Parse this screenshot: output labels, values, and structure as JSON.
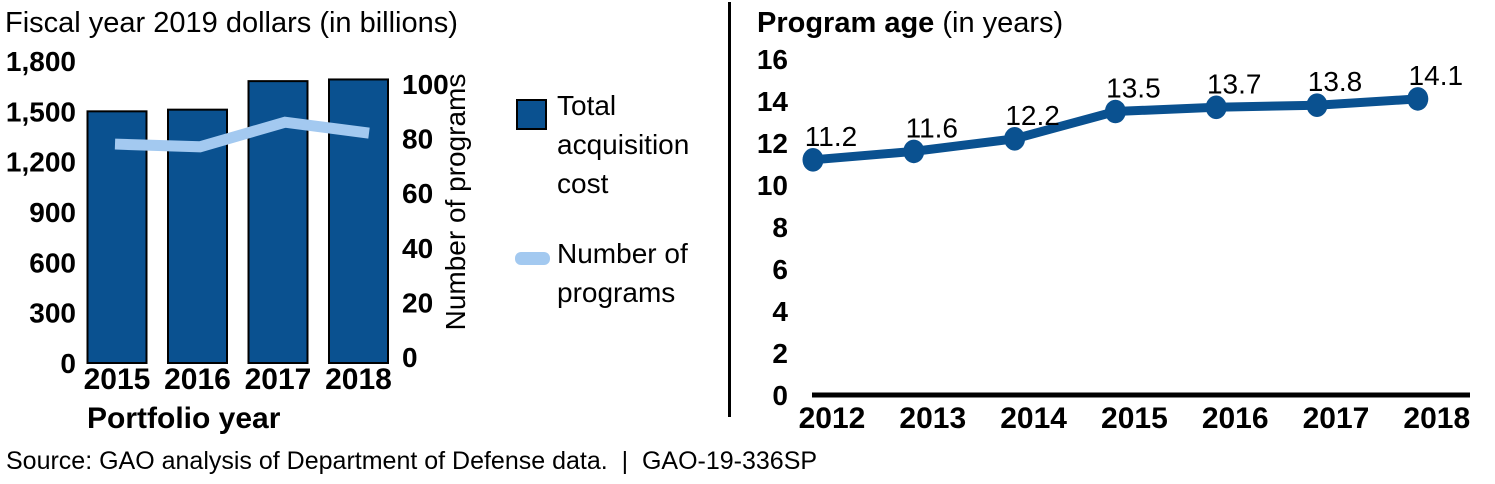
{
  "source_note": "Source: GAO analysis of Department of Defense data.  |  GAO-19-336SP",
  "colors": {
    "dark_blue": "#0A5190",
    "light_blue": "#A3C9F0",
    "black": "#000000",
    "background": "#FFFFFF"
  },
  "chart_data": [
    {
      "type": "bar",
      "subtype": "bar-with-secondary-line-dual-axis",
      "title": "Fiscal year 2019 dollars (in billions)",
      "xlabel": "Portfolio year",
      "categories": [
        "2015",
        "2016",
        "2017",
        "2018"
      ],
      "series": [
        {
          "name": "Total acquisition cost",
          "type": "bar",
          "axis": "left",
          "values": [
            1500,
            1510,
            1680,
            1690
          ]
        },
        {
          "name": "Number of programs",
          "type": "line",
          "axis": "right",
          "values": [
            78,
            77,
            86,
            82
          ]
        }
      ],
      "left_axis": {
        "range": [
          0,
          1800
        ],
        "tick_values": [
          0,
          300,
          600,
          900,
          1200,
          1500,
          1800
        ],
        "tick_labels": [
          "0",
          "300",
          "600",
          "900",
          "1,200",
          "1,500",
          "1,800"
        ]
      },
      "right_axis": {
        "label": "Number of programs",
        "range": [
          0,
          100
        ],
        "tick_values": [
          0,
          20,
          40,
          60,
          80,
          100
        ],
        "tick_labels": [
          "0",
          "20",
          "40",
          "60",
          "80",
          "100"
        ]
      },
      "legend": [
        {
          "swatch": "dark-blue-square",
          "lines": [
            "Total",
            "acquisition",
            "cost"
          ]
        },
        {
          "swatch": "light-blue-line",
          "lines": [
            "Number of",
            "programs"
          ]
        }
      ],
      "grid": false
    },
    {
      "type": "line",
      "title_bold": "Program age",
      "title_suffix": " (in years)",
      "categories": [
        "2012",
        "2013",
        "2014",
        "2015",
        "2016",
        "2017",
        "2018"
      ],
      "values": [
        11.2,
        11.6,
        12.2,
        13.5,
        13.7,
        13.8,
        14.1
      ],
      "point_labels": [
        "11.2",
        "11.6",
        "12.2",
        "13.5",
        "13.7",
        "13.8",
        "14.1"
      ],
      "y_axis": {
        "range": [
          0,
          16
        ],
        "tick_values": [
          0,
          2,
          4,
          6,
          8,
          10,
          12,
          14,
          16
        ],
        "tick_labels": [
          "0",
          "2",
          "4",
          "6",
          "8",
          "10",
          "12",
          "14",
          "16"
        ]
      },
      "grid": false,
      "legend_position": "none"
    }
  ]
}
